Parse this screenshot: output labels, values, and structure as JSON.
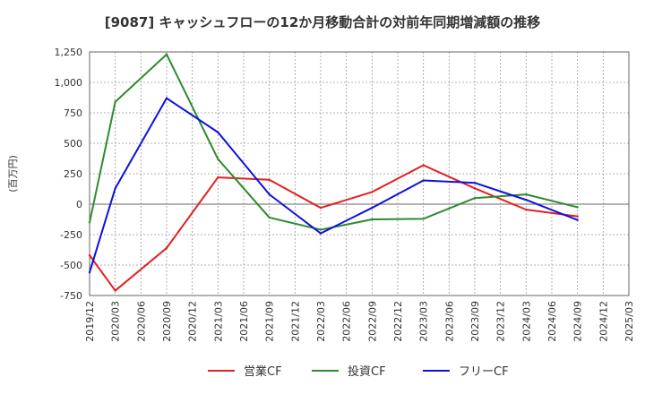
{
  "chart_data": {
    "type": "line",
    "title": "[9087]  キャッシュフローの12か月移動合計の対前年同期増減額の推移",
    "ylabel": "(百万円)",
    "xlabel": "",
    "ylim": [
      -750,
      1250
    ],
    "y_ticks": [
      1250,
      1000,
      750,
      500,
      250,
      0,
      -250,
      -500,
      -750
    ],
    "y_tick_labels": [
      "1,250",
      "1,000",
      "750",
      "500",
      "250",
      "0",
      "-250",
      "-500",
      "-750"
    ],
    "x_tick_labels": [
      "2019/12",
      "2020/03",
      "2020/06",
      "2020/09",
      "2020/12",
      "2021/03",
      "2021/06",
      "2021/09",
      "2021/12",
      "2022/03",
      "2022/06",
      "2022/09",
      "2022/12",
      "2023/03",
      "2023/06",
      "2023/09",
      "2023/12",
      "2024/03",
      "2024/06",
      "2024/09",
      "2024/12",
      "2025/03"
    ],
    "grid": true,
    "legend_position": "bottom",
    "series": [
      {
        "name": "営業CF",
        "color": "#e02020",
        "x": [
          "2019/12",
          "2020/03",
          "2020/09",
          "2021/03",
          "2021/09",
          "2022/03",
          "2022/09",
          "2023/03",
          "2023/09",
          "2024/03",
          "2024/09"
        ],
        "values": [
          -420,
          -710,
          -360,
          220,
          200,
          -30,
          100,
          320,
          130,
          -45,
          -100
        ]
      },
      {
        "name": "投資CF",
        "color": "#2e8b2e",
        "x": [
          "2019/12",
          "2020/03",
          "2020/09",
          "2021/03",
          "2021/09",
          "2022/03",
          "2022/09",
          "2023/03",
          "2023/09",
          "2024/03",
          "2024/09"
        ],
        "values": [
          -150,
          840,
          1230,
          370,
          -110,
          -210,
          -125,
          -120,
          50,
          80,
          -25
        ]
      },
      {
        "name": "フリーCF",
        "color": "#1010dd",
        "x": [
          "2019/12",
          "2020/03",
          "2020/09",
          "2021/03",
          "2021/09",
          "2022/03",
          "2022/09",
          "2023/03",
          "2023/09",
          "2024/03",
          "2024/09"
        ],
        "values": [
          -560,
          130,
          870,
          590,
          80,
          -240,
          -30,
          195,
          175,
          35,
          -130
        ]
      }
    ]
  }
}
